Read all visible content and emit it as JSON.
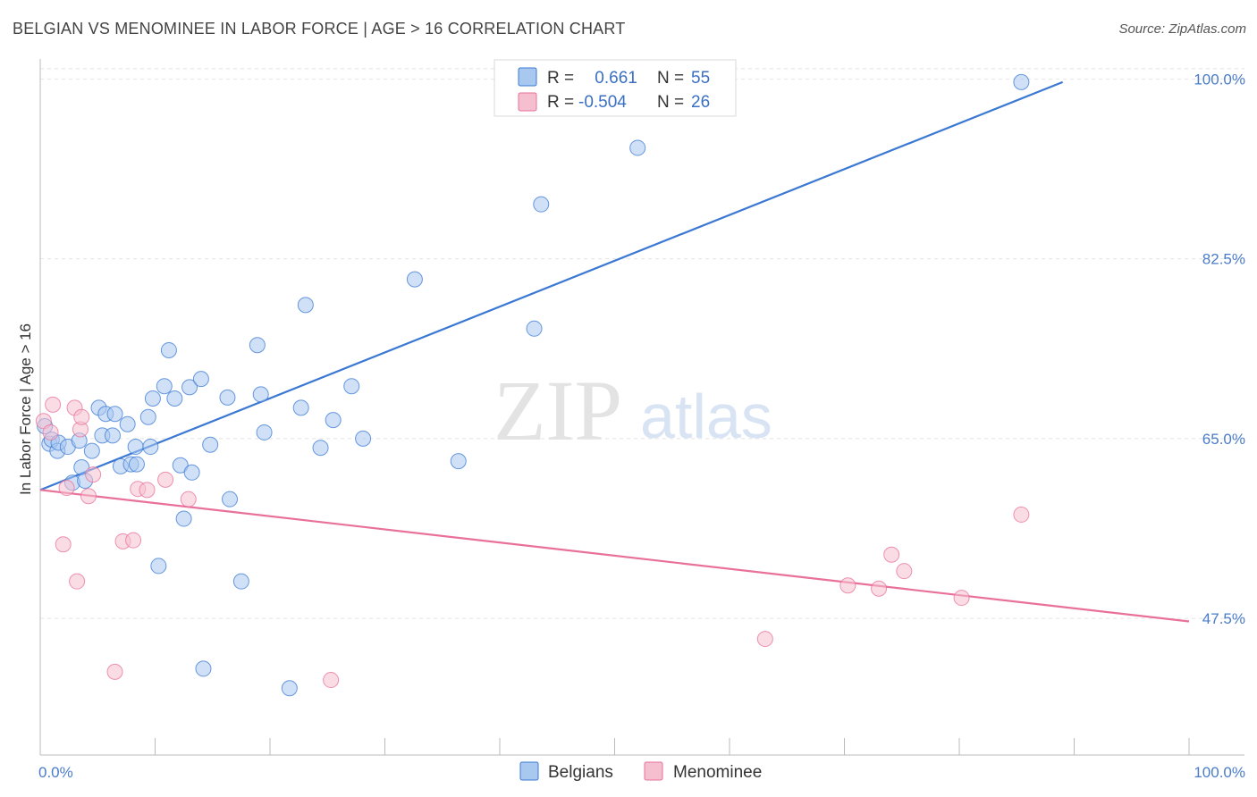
{
  "title": "BELGIAN VS MENOMINEE IN LABOR FORCE | AGE > 16 CORRELATION CHART",
  "source": "Source: ZipAtlas.com",
  "watermark": {
    "zip": "ZIP",
    "atlas": "atlas"
  },
  "colors": {
    "belgians": "#3a78d4",
    "belgians_fill": "#a9c8f0",
    "menominee": "#e8709a",
    "menominee_fill": "#f6bfd0",
    "axis_text": "#4a7cc9"
  },
  "legend": {
    "rows": [
      {
        "r_label": "R =",
        "r_value": " 0.661",
        "n_label": "N =",
        "n_value": "55"
      },
      {
        "r_label": "R =",
        "r_value": "-0.504",
        "n_label": "N =",
        "n_value": "26"
      }
    ]
  },
  "chart_data": {
    "type": "scatter",
    "title": "BELGIAN VS MENOMINEE IN LABOR FORCE | AGE > 16 CORRELATION CHART",
    "xlabel": "",
    "ylabel": "In Labor Force | Age > 16",
    "x_tick_labels": [
      "0.0%",
      "100.0%"
    ],
    "y_tick_labels": [
      "100.0%",
      "82.5%",
      "65.0%",
      "47.5%"
    ],
    "y_ticks": [
      100.0,
      82.5,
      65.0,
      47.5
    ],
    "xlim": [
      0,
      100
    ],
    "ylim": [
      34.2,
      101.6
    ],
    "grid": true,
    "legend_position": "top-center",
    "series": [
      {
        "name": "Belgians",
        "color": "#3a78d4",
        "points": [
          [
            0.4,
            66.2
          ],
          [
            0.8,
            64.5
          ],
          [
            1.0,
            64.9
          ],
          [
            1.5,
            63.8
          ],
          [
            1.6,
            64.6
          ],
          [
            2.4,
            64.2
          ],
          [
            2.8,
            60.7
          ],
          [
            3.4,
            64.8
          ],
          [
            3.6,
            62.2
          ],
          [
            3.9,
            60.9
          ],
          [
            4.5,
            63.8
          ],
          [
            5.1,
            68.0
          ],
          [
            5.4,
            65.3
          ],
          [
            5.7,
            67.4
          ],
          [
            6.3,
            65.3
          ],
          [
            6.5,
            67.4
          ],
          [
            7.0,
            62.3
          ],
          [
            7.6,
            66.4
          ],
          [
            7.9,
            62.5
          ],
          [
            8.3,
            64.2
          ],
          [
            8.4,
            62.5
          ],
          [
            9.4,
            67.1
          ],
          [
            9.6,
            64.2
          ],
          [
            9.8,
            68.9
          ],
          [
            10.3,
            52.6
          ],
          [
            10.8,
            70.1
          ],
          [
            11.2,
            73.6
          ],
          [
            11.7,
            68.9
          ],
          [
            12.2,
            62.4
          ],
          [
            12.5,
            57.2
          ],
          [
            13.0,
            70.0
          ],
          [
            13.2,
            61.7
          ],
          [
            14.0,
            70.8
          ],
          [
            14.2,
            42.6
          ],
          [
            14.8,
            64.4
          ],
          [
            16.3,
            69.0
          ],
          [
            16.5,
            59.1
          ],
          [
            17.5,
            51.1
          ],
          [
            18.9,
            74.1
          ],
          [
            19.2,
            69.3
          ],
          [
            19.5,
            65.6
          ],
          [
            21.7,
            40.7
          ],
          [
            22.7,
            68.0
          ],
          [
            23.1,
            78.0
          ],
          [
            24.4,
            64.1
          ],
          [
            25.5,
            66.8
          ],
          [
            27.1,
            70.1
          ],
          [
            28.1,
            65.0
          ],
          [
            32.6,
            80.5
          ],
          [
            36.4,
            62.8
          ],
          [
            43.0,
            75.7
          ],
          [
            43.6,
            87.8
          ],
          [
            48.6,
            99.3
          ],
          [
            52.0,
            93.3
          ],
          [
            85.4,
            99.7
          ]
        ],
        "trend": {
          "x": [
            0.0,
            89.0
          ],
          "y": [
            60.0,
            99.7
          ]
        }
      },
      {
        "name": "Menominee",
        "color": "#e8709a",
        "points": [
          [
            0.3,
            66.7
          ],
          [
            0.9,
            65.6
          ],
          [
            1.1,
            68.3
          ],
          [
            2.0,
            54.7
          ],
          [
            2.3,
            60.2
          ],
          [
            3.0,
            68.0
          ],
          [
            3.2,
            51.1
          ],
          [
            3.5,
            65.9
          ],
          [
            3.6,
            67.1
          ],
          [
            4.2,
            59.4
          ],
          [
            4.6,
            61.5
          ],
          [
            6.5,
            42.3
          ],
          [
            7.2,
            55.0
          ],
          [
            8.1,
            55.1
          ],
          [
            8.5,
            60.1
          ],
          [
            9.3,
            60.0
          ],
          [
            10.9,
            61.0
          ],
          [
            12.9,
            59.1
          ],
          [
            25.3,
            41.5
          ],
          [
            63.1,
            45.5
          ],
          [
            70.3,
            50.7
          ],
          [
            73.0,
            50.4
          ],
          [
            74.1,
            53.7
          ],
          [
            75.2,
            52.1
          ],
          [
            80.2,
            49.5
          ],
          [
            85.4,
            57.6
          ]
        ],
        "trend": {
          "x": [
            0.0,
            100.0
          ],
          "y": [
            60.0,
            47.2
          ]
        }
      }
    ]
  },
  "bottom_legend": {
    "items": [
      "Belgians",
      "Menominee"
    ]
  }
}
